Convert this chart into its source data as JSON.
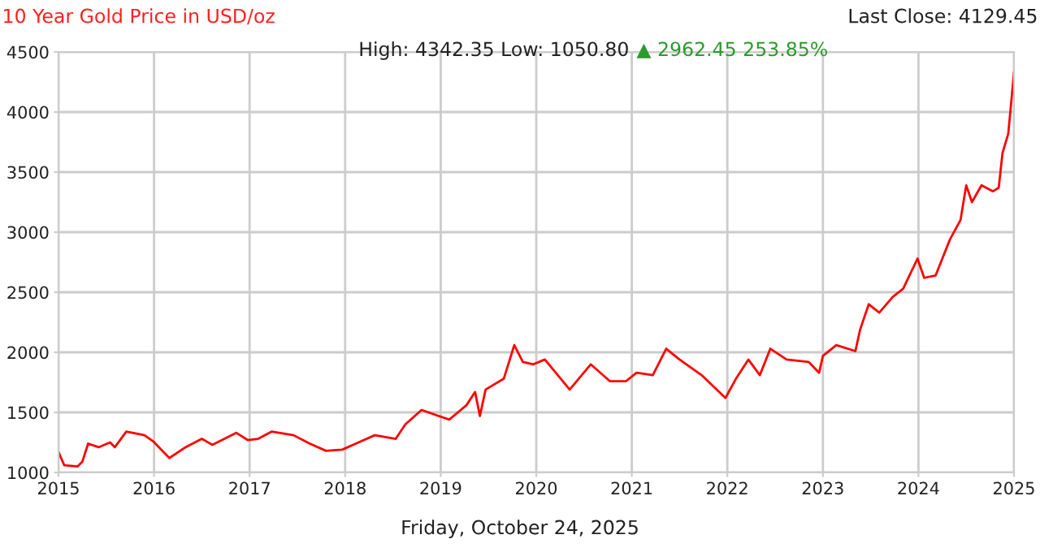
{
  "chart_data": {
    "type": "line",
    "title": "10 Year Gold Price in USD/oz",
    "annotations": [
      "High: 4342.35 Low: 1050.80",
      "▲ 2962.45 253.85%",
      "Last Close: 4129.45",
      "Friday, October 24, 2025"
    ],
    "series": [
      {
        "color": "#ff0000",
        "x": [
          2015.0,
          2015.06,
          2015.2,
          2015.25,
          2015.31,
          2015.42,
          2015.54,
          2015.59,
          2015.71,
          2015.9,
          2015.99,
          2016.16,
          2016.33,
          2016.5,
          2016.61,
          2016.86,
          2016.98,
          2017.09,
          2017.23,
          2017.46,
          2017.63,
          2017.8,
          2017.97,
          2018.14,
          2018.31,
          2018.53,
          2018.63,
          2018.8,
          2018.98,
          2019.09,
          2019.27,
          2019.36,
          2019.41,
          2019.47,
          2019.66,
          2019.77,
          2019.86,
          2019.97,
          2020.09,
          2020.35,
          2020.57,
          2020.77,
          2020.94,
          2021.05,
          2021.22,
          2021.36,
          2021.5,
          2021.73,
          2021.98,
          2022.09,
          2022.22,
          2022.34,
          2022.45,
          2022.62,
          2022.85,
          2022.96,
          2023.0,
          2023.14,
          2023.34,
          2023.39,
          2023.48,
          2023.59,
          2023.73,
          2023.84,
          2023.99,
          2024.06,
          2024.18,
          2024.33,
          2024.44,
          2024.5,
          2024.56,
          2024.66,
          2024.78,
          2024.84,
          2024.88,
          2024.94,
          2025.0
        ],
        "values": [
          1170,
          1060,
          1050,
          1090,
          1240,
          1210,
          1250,
          1210,
          1340,
          1310,
          1260,
          1120,
          1210,
          1280,
          1230,
          1330,
          1270,
          1280,
          1340,
          1310,
          1240,
          1180,
          1190,
          1250,
          1310,
          1280,
          1400,
          1520,
          1470,
          1440,
          1560,
          1670,
          1470,
          1690,
          1780,
          2060,
          1920,
          1900,
          1940,
          1690,
          1900,
          1760,
          1760,
          1830,
          1810,
          2030,
          1940,
          1810,
          1620,
          1780,
          1940,
          1810,
          2030,
          1940,
          1920,
          1830,
          1970,
          2060,
          2010,
          2190,
          2400,
          2330,
          2460,
          2530,
          2780,
          2620,
          2640,
          2940,
          3100,
          3390,
          3250,
          3390,
          3340,
          3370,
          3660,
          3820,
          4330
        ]
      }
    ],
    "xlim": [
      2015,
      2025
    ],
    "xticks": [
      2015,
      2016,
      2017,
      2018,
      2019,
      2020,
      2021,
      2022,
      2023,
      2024,
      2025
    ],
    "ylim": [
      1000,
      4500
    ],
    "yticks": [
      1000,
      1500,
      2000,
      2500,
      3000,
      3500,
      4000,
      4500
    ],
    "grid": true,
    "marker": "none",
    "line_style": "solid"
  }
}
